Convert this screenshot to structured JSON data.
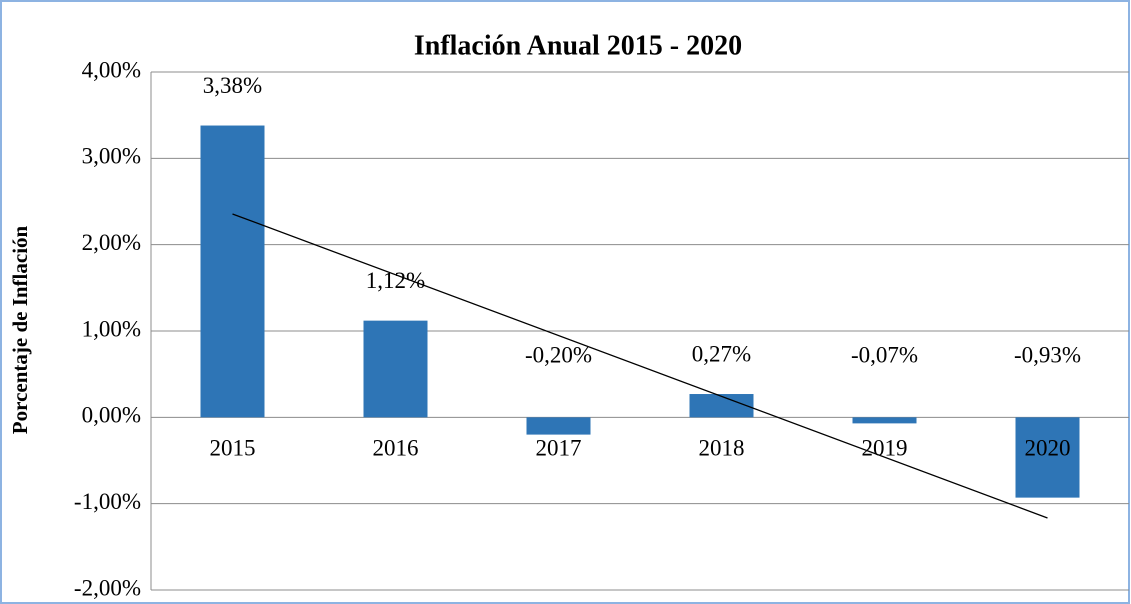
{
  "chart_data": {
    "type": "bar",
    "title": "Inflación Anual 2015 - 2020",
    "y_label": "Porcentaje de Inflación",
    "categories": [
      "2015",
      "2016",
      "2017",
      "2018",
      "2019",
      "2020"
    ],
    "values": [
      3.38,
      1.12,
      -0.2,
      0.27,
      -0.07,
      -0.93
    ],
    "value_labels": [
      "3,38%",
      "1,12%",
      "-0,20%",
      "0,27%",
      "-0,07%",
      "-0,93%"
    ],
    "color": "#2e75b6",
    "ylim": [
      -2,
      4
    ],
    "yticks": [
      {
        "value": -2,
        "label": "-2,00%"
      },
      {
        "value": -1,
        "label": "-1,00%"
      },
      {
        "value": 0,
        "label": "0,00%"
      },
      {
        "value": 1,
        "label": "1,00%"
      },
      {
        "value": 2,
        "label": "2,00%"
      },
      {
        "value": 3,
        "label": "3,00%"
      },
      {
        "value": 4,
        "label": "4,00%"
      }
    ],
    "grid": true,
    "trendline": "linear"
  }
}
